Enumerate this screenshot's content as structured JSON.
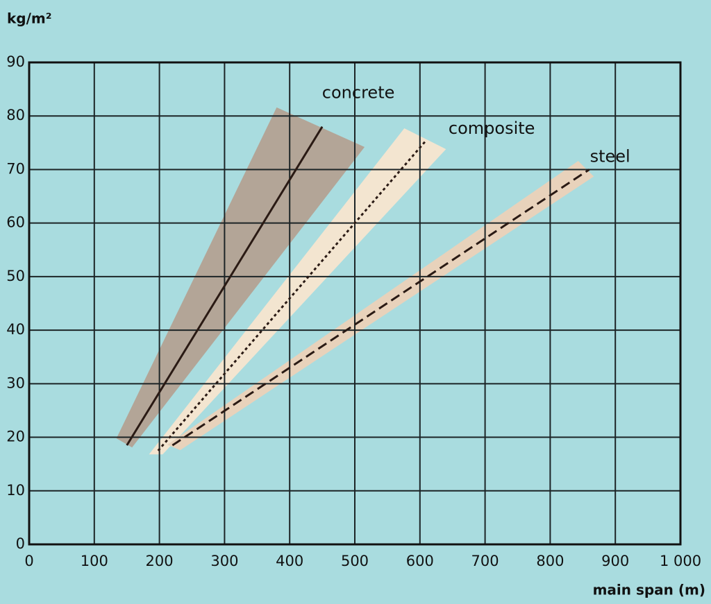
{
  "chart_data": {
    "type": "line",
    "y_label": "kg/m²",
    "x_label": "main span (m)",
    "xlim": [
      0,
      1000
    ],
    "ylim": [
      0,
      90
    ],
    "xticks": [
      0,
      100,
      200,
      300,
      400,
      500,
      600,
      700,
      800,
      900,
      {
        "value": 1000,
        "label": "1 000"
      }
    ],
    "yticks": [
      0,
      10,
      20,
      30,
      40,
      50,
      60,
      70,
      80,
      90
    ],
    "grid": true,
    "series": [
      {
        "name": "concrete",
        "color": "#2a1a14",
        "band_color": "#b3a597",
        "dash": "solid",
        "x": [
          150,
          450
        ],
        "values": [
          18.5,
          78
        ],
        "band": [
          [
            134,
            19.8
          ],
          [
            158,
            18.1
          ],
          [
            515,
            74.2
          ],
          [
            380,
            81.6
          ]
        ]
      },
      {
        "name": "composite",
        "color": "#2a1a14",
        "band_color": "#f3e5d0",
        "dash": "dotted",
        "x": [
          198,
          610
        ],
        "values": [
          17.5,
          75.5
        ],
        "band": [
          [
            184,
            16.8
          ],
          [
            205,
            16.8
          ],
          [
            640,
            73.8
          ],
          [
            576,
            77.7
          ]
        ]
      },
      {
        "name": "steel",
        "color": "#2a1a14",
        "band_color": "#e8d2bb",
        "dash": "dashed",
        "x": [
          220,
          860
        ],
        "values": [
          18.5,
          70
        ],
        "band": [
          [
            212,
            18.6
          ],
          [
            232,
            17.6
          ],
          [
            867,
            68.7
          ],
          [
            843,
            71.6
          ]
        ]
      }
    ]
  }
}
